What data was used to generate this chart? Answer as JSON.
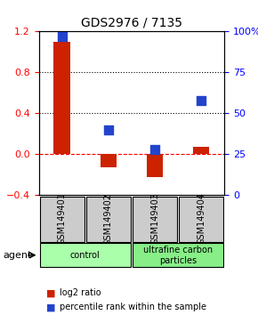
{
  "title": "GDS2976 / 7135",
  "samples": [
    "GSM149401",
    "GSM149402",
    "GSM149403",
    "GSM149404"
  ],
  "log2_ratio": [
    1.1,
    -0.13,
    -0.22,
    0.07
  ],
  "percentile_rank": [
    97,
    40,
    28,
    58
  ],
  "bar_color": "#cc2200",
  "dot_color": "#2244cc",
  "left_ylim": [
    -0.4,
    1.2
  ],
  "right_ylim": [
    0,
    100
  ],
  "left_yticks": [
    -0.4,
    0.0,
    0.4,
    0.8,
    1.2
  ],
  "right_yticks": [
    0,
    25,
    50,
    75,
    100
  ],
  "right_yticklabels": [
    "0",
    "25",
    "50",
    "75",
    "100%"
  ],
  "hlines": [
    0.0,
    0.4,
    0.8
  ],
  "hline_styles": [
    "dashed",
    "dotted",
    "dotted"
  ],
  "groups": [
    {
      "label": "control",
      "samples": [
        0,
        1
      ],
      "color": "#aaffaa"
    },
    {
      "label": "ultrafine carbon\nparticles",
      "samples": [
        2,
        3
      ],
      "color": "#88ee88"
    }
  ],
  "agent_label": "agent",
  "legend_items": [
    {
      "color": "#cc2200",
      "label": "log2 ratio"
    },
    {
      "color": "#2244cc",
      "label": "percentile rank within the sample"
    }
  ],
  "plot_bg": "#ffffff",
  "sample_box_color": "#cccccc",
  "bar_width": 0.35,
  "dot_size": 60
}
